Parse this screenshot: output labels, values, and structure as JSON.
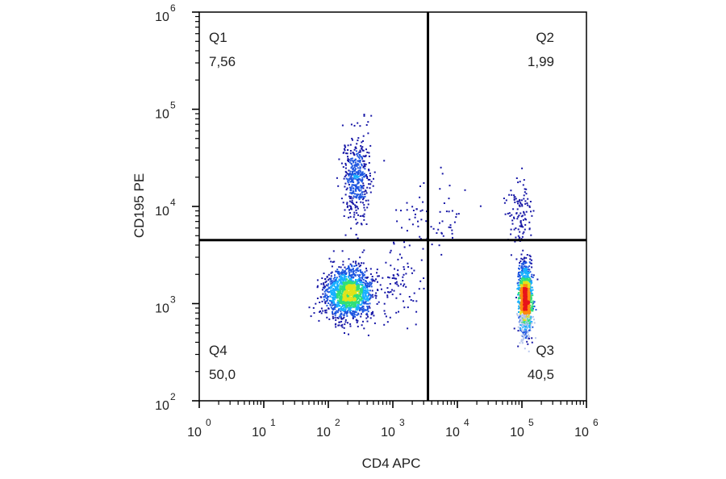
{
  "chart_data": {
    "type": "scatter",
    "subtype": "flow-cytometry-density-dot-plot",
    "xlabel": "CD4 APC",
    "ylabel": "CD195 PE",
    "x_scale": "log",
    "y_scale": "log",
    "xlim": [
      1,
      1000000
    ],
    "ylim": [
      100,
      1000000
    ],
    "x_ticks": [
      {
        "base": "10",
        "exp": "0"
      },
      {
        "base": "10",
        "exp": "1"
      },
      {
        "base": "10",
        "exp": "2"
      },
      {
        "base": "10",
        "exp": "3"
      },
      {
        "base": "10",
        "exp": "4"
      },
      {
        "base": "10",
        "exp": "5"
      },
      {
        "base": "10",
        "exp": "6"
      }
    ],
    "y_ticks": [
      {
        "base": "10",
        "exp": "2"
      },
      {
        "base": "10",
        "exp": "3"
      },
      {
        "base": "10",
        "exp": "4"
      },
      {
        "base": "10",
        "exp": "5"
      },
      {
        "base": "10",
        "exp": "6"
      }
    ],
    "quadrant_gate": {
      "x": 3500,
      "y": 4500
    },
    "quadrants": [
      {
        "id": "Q1",
        "value": "7,56",
        "position": "top-left"
      },
      {
        "id": "Q2",
        "value": "1,99",
        "position": "top-right"
      },
      {
        "id": "Q3",
        "value": "40,5",
        "position": "bottom-right"
      },
      {
        "id": "Q4",
        "value": "50,0",
        "position": "bottom-left"
      }
    ],
    "populations": [
      {
        "x_center": 200,
        "y_center": 1300,
        "spread_x_log": 0.18,
        "spread_y_log": 0.13,
        "count": 1500
      },
      {
        "x_center": 270,
        "y_center": 20000,
        "spread_x_log": 0.11,
        "spread_y_log": 0.22,
        "count": 420
      },
      {
        "x_center": 110000,
        "y_center": 1100,
        "spread_x_log": 0.05,
        "spread_y_log": 0.17,
        "count": 1300
      },
      {
        "x_center": 90000,
        "y_center": 9000,
        "spread_x_log": 0.1,
        "spread_y_log": 0.18,
        "count": 110
      },
      {
        "x_center": 4000,
        "y_center": 8000,
        "spread_x_log": 0.28,
        "spread_y_log": 0.18,
        "count": 70
      },
      {
        "x_center": 1200,
        "y_center": 1500,
        "spread_x_log": 0.2,
        "spread_y_log": 0.2,
        "count": 80
      }
    ],
    "density_colors": [
      "#1616a6",
      "#1c55e0",
      "#18b0ff",
      "#2ee07a",
      "#e0e41a",
      "#ff8a10",
      "#e8141a"
    ],
    "low_density_color": "#b8c8ee",
    "grid": false,
    "legend": "none"
  }
}
